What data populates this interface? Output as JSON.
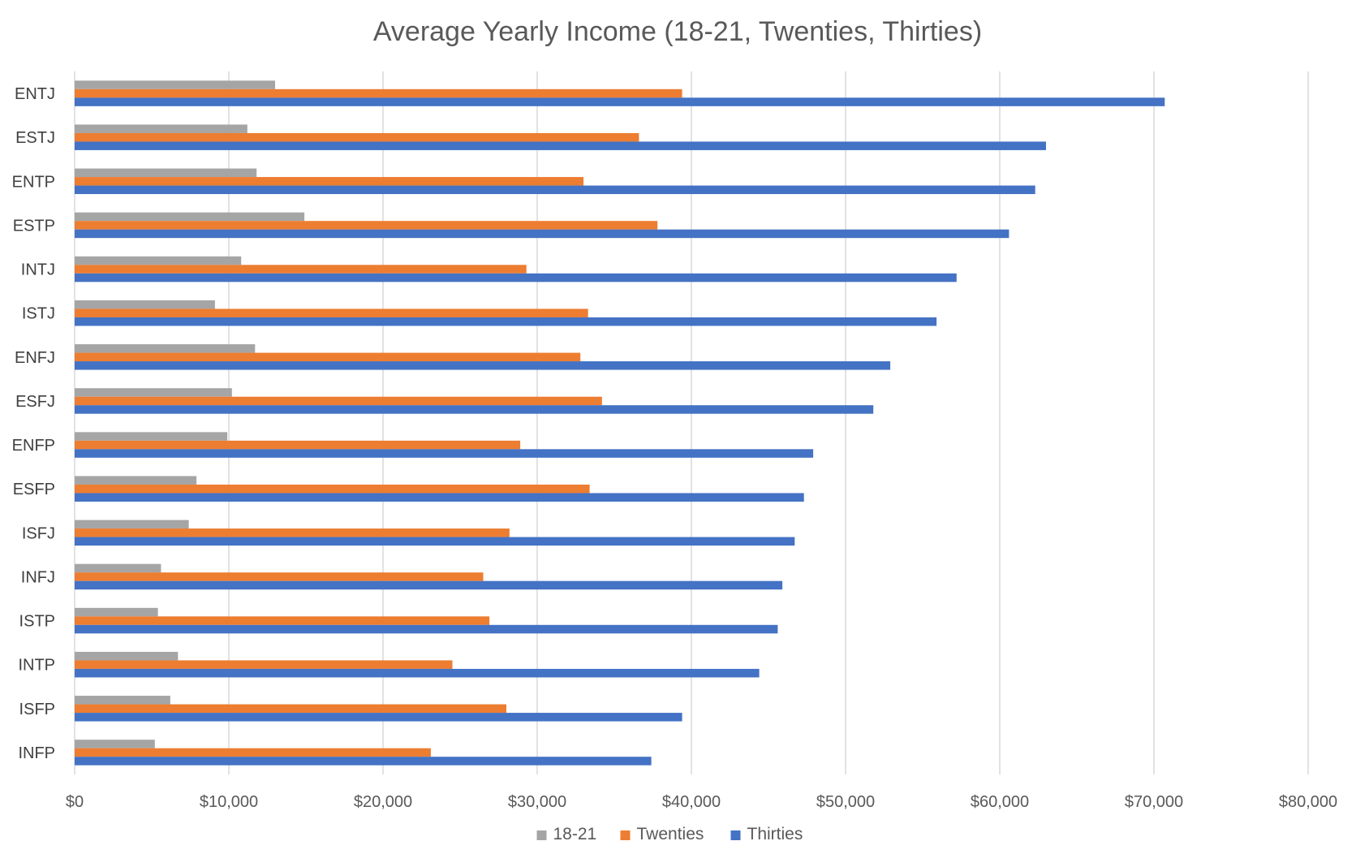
{
  "chart_data": {
    "type": "bar",
    "orientation": "horizontal",
    "title": "Average Yearly Income (18-21, Twenties, Thirties)",
    "xlabel": "",
    "ylabel": "",
    "xlim": [
      0,
      80000
    ],
    "x_ticks": [
      0,
      10000,
      20000,
      30000,
      40000,
      50000,
      60000,
      70000,
      80000
    ],
    "x_tick_labels": [
      "$0",
      "$10,000",
      "$20,000",
      "$30,000",
      "$40,000",
      "$50,000",
      "$60,000",
      "$70,000",
      "$80,000"
    ],
    "grid": true,
    "legend_position": "bottom",
    "categories": [
      "ENTJ",
      "ESTJ",
      "ENTP",
      "ESTP",
      "INTJ",
      "ISTJ",
      "ENFJ",
      "ESFJ",
      "ENFP",
      "ESFP",
      "ISFJ",
      "INFJ",
      "ISTP",
      "INTP",
      "ISFP",
      "INFP"
    ],
    "series": [
      {
        "name": "18-21",
        "color": "#a5a5a5",
        "values": [
          13000,
          11200,
          11800,
          14900,
          10800,
          9100,
          11700,
          10200,
          9900,
          7900,
          7400,
          5600,
          5400,
          6700,
          6200,
          5200
        ]
      },
      {
        "name": "Twenties",
        "color": "#ed7d31",
        "values": [
          39400,
          36600,
          33000,
          37800,
          29300,
          33300,
          32800,
          34200,
          28900,
          33400,
          28200,
          26500,
          26900,
          24500,
          28000,
          23100
        ]
      },
      {
        "name": "Thirties",
        "color": "#4472c4",
        "values": [
          70700,
          63000,
          62300,
          60600,
          57200,
          55900,
          52900,
          51800,
          47900,
          47300,
          46700,
          45900,
          45600,
          44400,
          39400,
          37400
        ]
      }
    ]
  }
}
